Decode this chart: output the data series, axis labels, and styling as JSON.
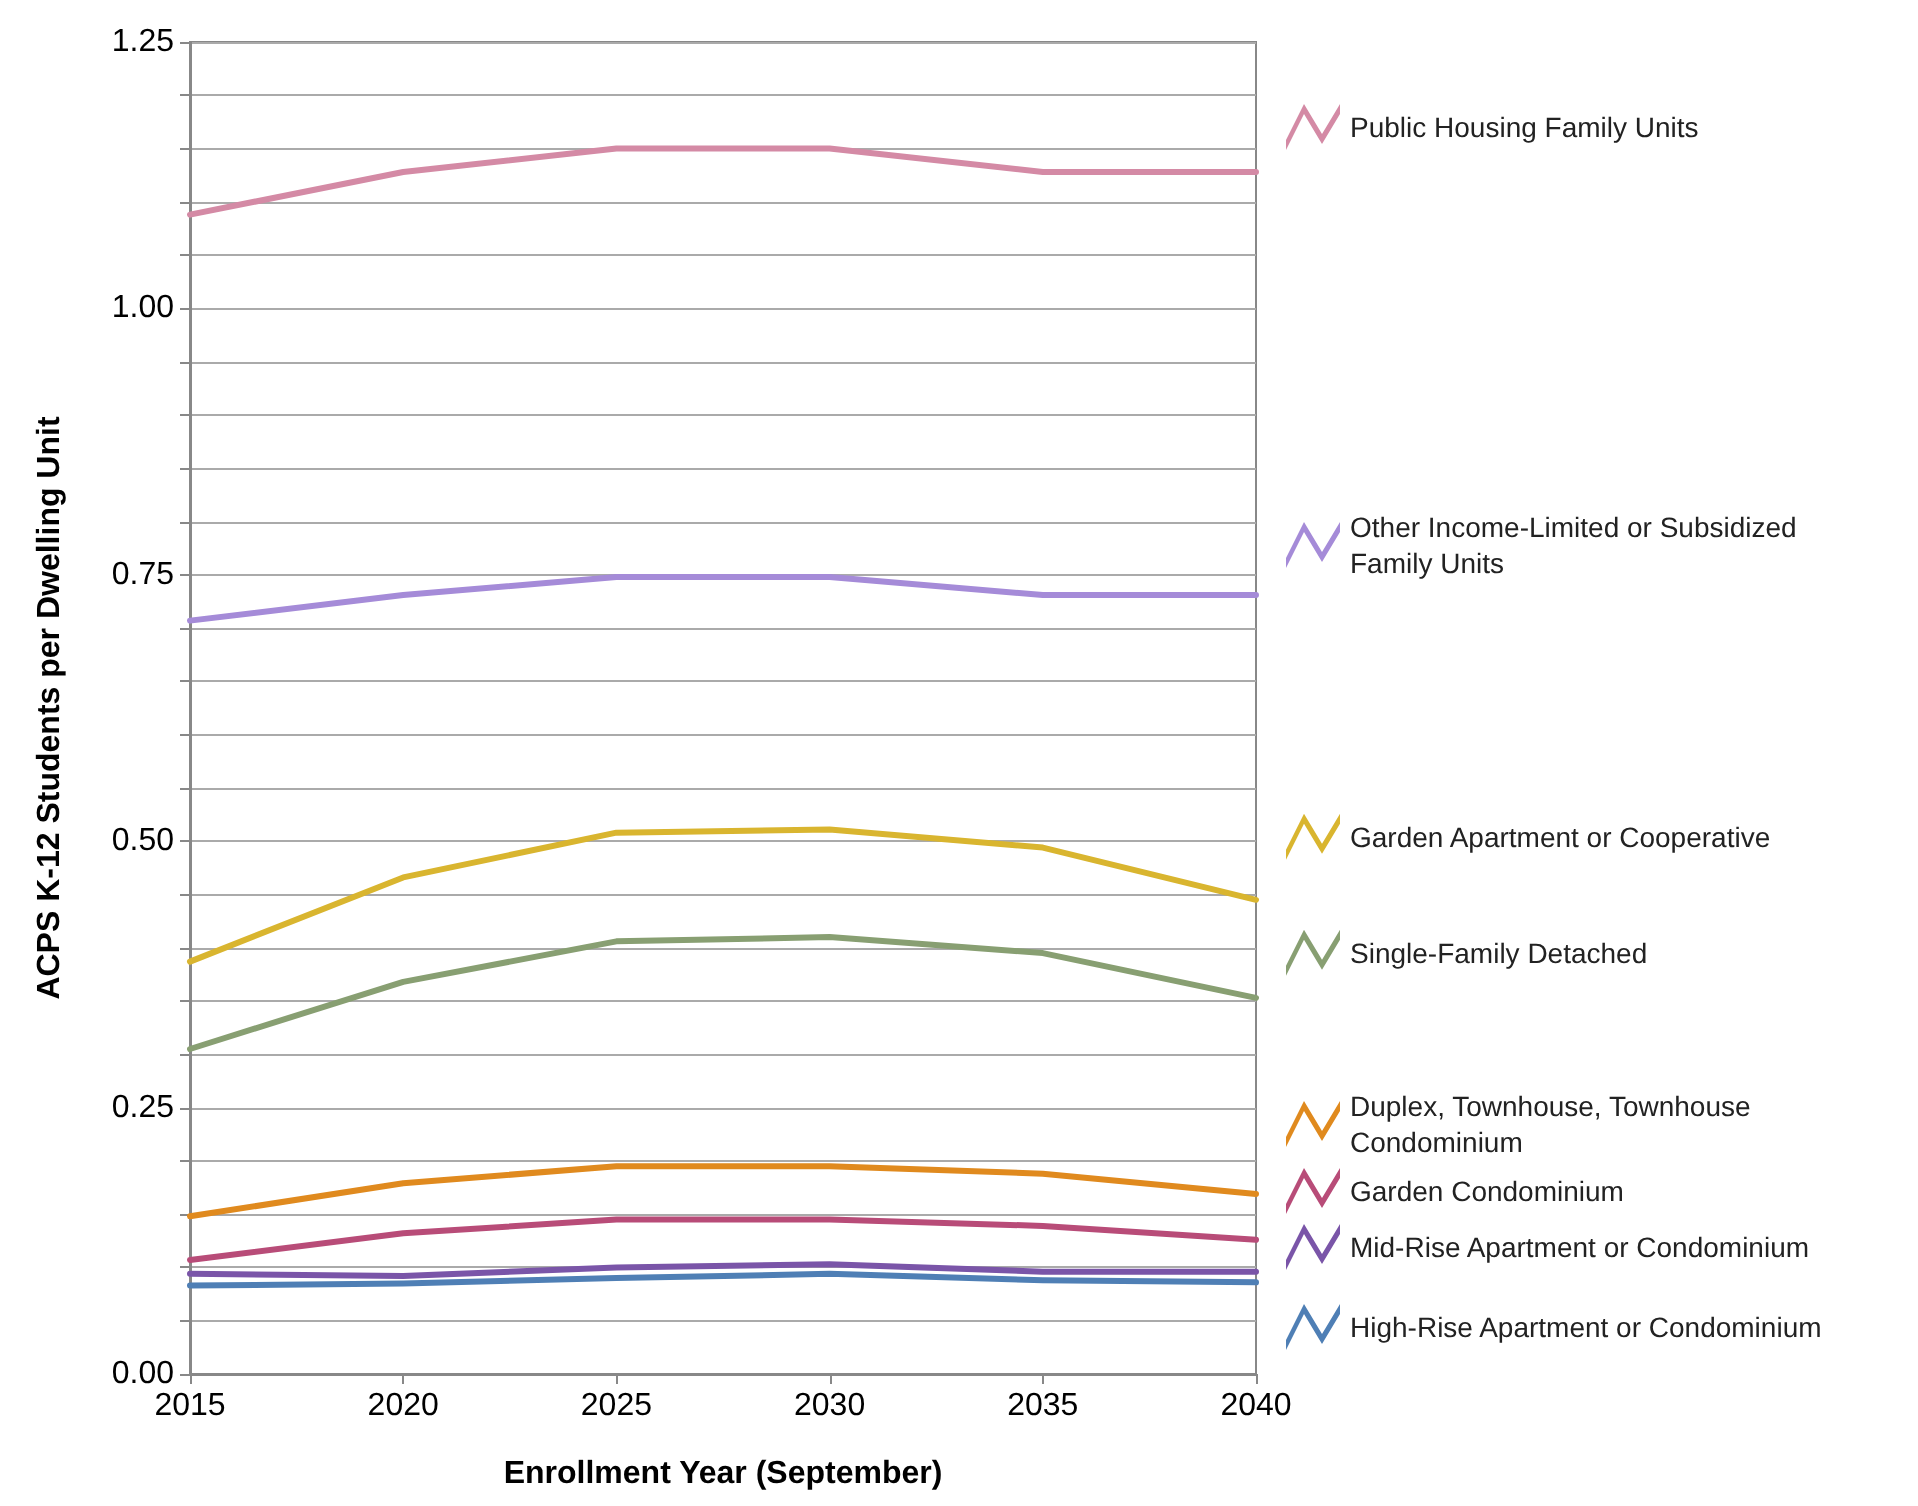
{
  "chart_data": {
    "type": "line",
    "xlabel": "Enrollment Year (September)",
    "ylabel": "ACPS K-12 Students per Dwelling Unit",
    "x": [
      2015,
      2020,
      2025,
      2030,
      2035,
      2040
    ],
    "xlim": [
      2015,
      2040
    ],
    "xticks": [
      2015,
      2020,
      2025,
      2030,
      2035,
      2040
    ],
    "ylim": [
      0,
      1.25
    ],
    "yticks": [
      {
        "value": 0,
        "label": "0.00"
      },
      {
        "value": 0.05,
        "label": null
      },
      {
        "value": 0.1,
        "label": null
      },
      {
        "value": 0.15,
        "label": null
      },
      {
        "value": 0.2,
        "label": null
      },
      {
        "value": 0.25,
        "label": "0.25"
      },
      {
        "value": 0.3,
        "label": null
      },
      {
        "value": 0.35,
        "label": null
      },
      {
        "value": 0.4,
        "label": null
      },
      {
        "value": 0.45,
        "label": null
      },
      {
        "value": 0.5,
        "label": "0.50"
      },
      {
        "value": 0.55,
        "label": null
      },
      {
        "value": 0.6,
        "label": null
      },
      {
        "value": 0.65,
        "label": null
      },
      {
        "value": 0.7,
        "label": null
      },
      {
        "value": 0.75,
        "label": "0.75"
      },
      {
        "value": 0.8,
        "label": null
      },
      {
        "value": 0.85,
        "label": null
      },
      {
        "value": 0.9,
        "label": null
      },
      {
        "value": 0.95,
        "label": null
      },
      {
        "value": 1.0,
        "label": "1.00"
      },
      {
        "value": 1.05,
        "label": null
      },
      {
        "value": 1.1,
        "label": null
      },
      {
        "value": 1.15,
        "label": null
      },
      {
        "value": 1.2,
        "label": null
      },
      {
        "value": 1.25,
        "label": "1.25"
      }
    ],
    "grid": "y",
    "legend": "right",
    "marker": "none",
    "line_style": "solid",
    "series": [
      {
        "name": "Public Housing Family Units",
        "color": "#d48aa5",
        "values": [
          1.088,
          1.128,
          1.15,
          1.15,
          1.128,
          1.128
        ]
      },
      {
        "name": "Other Income-Limited or Subsidized Family Units",
        "color": "#a58bd8",
        "values": [
          0.707,
          0.731,
          0.748,
          0.748,
          0.731,
          0.731
        ]
      },
      {
        "name": "Garden Apartment or Cooperative",
        "color": "#d9b52f",
        "values": [
          0.387,
          0.466,
          0.508,
          0.511,
          0.494,
          0.445
        ]
      },
      {
        "name": "Single-Family Detached",
        "color": "#889f72",
        "values": [
          0.305,
          0.368,
          0.406,
          0.41,
          0.395,
          0.353
        ]
      },
      {
        "name": "Duplex, Townhouse, Townhouse Condominium",
        "color": "#e08a1e",
        "values": [
          0.148,
          0.179,
          0.195,
          0.195,
          0.188,
          0.169
        ]
      },
      {
        "name": "Garden Condominium",
        "color": "#b84c78",
        "values": [
          0.107,
          0.132,
          0.145,
          0.145,
          0.139,
          0.126
        ]
      },
      {
        "name": "Mid-Rise Apartment or Condominium",
        "color": "#7a55a8",
        "values": [
          0.094,
          0.092,
          0.1,
          0.103,
          0.096,
          0.096
        ]
      },
      {
        "name": "High-Rise Apartment or Condominium",
        "color": "#4f7fb5",
        "values": [
          0.083,
          0.085,
          0.09,
          0.094,
          0.088,
          0.086
        ]
      }
    ]
  }
}
